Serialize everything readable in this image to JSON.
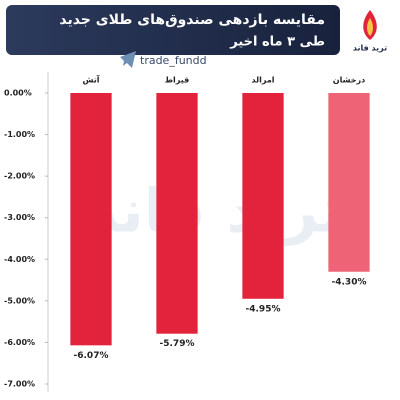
{
  "brand": "ترید فاند",
  "handle": "trade_fundd",
  "chart_data": {
    "type": "bar",
    "title": "مقایسه بازدهی صندوق‌های طلای جدید",
    "subtitle": "طی ۳ ماه اخیر",
    "categories": [
      "آتش",
      "قیراط",
      "امرالد",
      "درخشان"
    ],
    "values": [
      -6.07,
      -5.79,
      -4.95,
      -4.3
    ],
    "value_labels": [
      "-6.07%",
      "-5.79%",
      "-4.95%",
      "-4.30%"
    ],
    "colors": [
      "#e3233b",
      "#e3233b",
      "#e3233b",
      "#ee6476"
    ],
    "ylim": [
      -7,
      0
    ],
    "yticks": [
      {
        "value": 0,
        "label": "0.00%"
      },
      {
        "value": -1,
        "label": "-1.00%"
      },
      {
        "value": -2,
        "label": "-2.00%"
      },
      {
        "value": -3,
        "label": "-3.00%"
      },
      {
        "value": -4,
        "label": "-4.00%"
      },
      {
        "value": -5,
        "label": "-5.00%"
      },
      {
        "value": -6,
        "label": "-6.00%"
      },
      {
        "value": -7,
        "label": "-7.00%"
      }
    ],
    "grid": false
  }
}
